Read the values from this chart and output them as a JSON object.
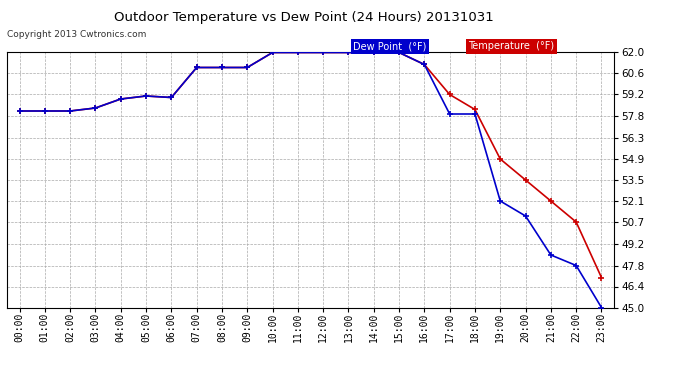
{
  "title": "Outdoor Temperature vs Dew Point (24 Hours) 20131031",
  "copyright": "Copyright 2013 Cwtronics.com",
  "x_labels": [
    "00:00",
    "01:00",
    "02:00",
    "03:00",
    "04:00",
    "05:00",
    "06:00",
    "07:00",
    "08:00",
    "09:00",
    "10:00",
    "11:00",
    "12:00",
    "13:00",
    "14:00",
    "15:00",
    "16:00",
    "17:00",
    "18:00",
    "19:00",
    "20:00",
    "21:00",
    "22:00",
    "23:00"
  ],
  "temperature": [
    58.1,
    58.1,
    58.1,
    58.3,
    58.9,
    59.1,
    59.0,
    61.0,
    61.0,
    61.0,
    62.0,
    62.0,
    62.0,
    62.0,
    62.0,
    62.0,
    61.2,
    59.2,
    58.2,
    54.9,
    53.5,
    52.1,
    50.7,
    47.0
  ],
  "dew_point": [
    58.1,
    58.1,
    58.1,
    58.3,
    58.9,
    59.1,
    59.0,
    61.0,
    61.0,
    61.0,
    62.0,
    62.0,
    62.0,
    62.0,
    62.0,
    62.0,
    61.2,
    57.9,
    57.9,
    52.1,
    51.1,
    48.5,
    47.8,
    45.0
  ],
  "temp_color": "#cc0000",
  "dew_color": "#0000cc",
  "marker": "+",
  "ylim_min": 45.0,
  "ylim_max": 62.0,
  "yticks": [
    45.0,
    46.4,
    47.8,
    49.2,
    50.7,
    52.1,
    53.5,
    54.9,
    56.3,
    57.8,
    59.2,
    60.6,
    62.0
  ],
  "bg_color": "#ffffff",
  "grid_color": "#aaaaaa",
  "legend_dew_bg": "#0000cc",
  "legend_temp_bg": "#cc0000",
  "legend_text_color": "#ffffff",
  "fig_width": 6.9,
  "fig_height": 3.75,
  "dpi": 100
}
